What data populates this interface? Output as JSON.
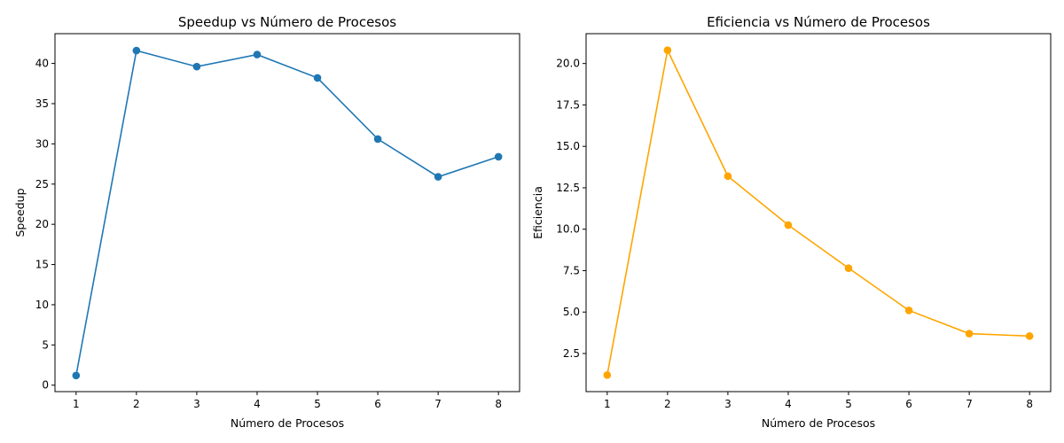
{
  "chart_data": [
    {
      "type": "line",
      "title": "Speedup vs Número de Procesos",
      "xlabel": "Número de Procesos",
      "ylabel": "Speedup",
      "x": [
        1,
        2,
        3,
        4,
        5,
        6,
        7,
        8
      ],
      "xlim": [
        0.65,
        8.35
      ],
      "ylim": [
        -0.8,
        43.7
      ],
      "xticks": [
        1,
        2,
        3,
        4,
        5,
        6,
        7,
        8
      ],
      "yticks": [
        0,
        5,
        10,
        15,
        20,
        25,
        30,
        35,
        40
      ],
      "yticklabels": [
        "0",
        "5",
        "10",
        "15",
        "20",
        "25",
        "30",
        "35",
        "40"
      ],
      "marker": "circle",
      "grid": false,
      "series": [
        {
          "color": "#1f77b4",
          "values": [
            1.2,
            41.6,
            39.6,
            41.1,
            38.2,
            30.6,
            25.9,
            28.4
          ]
        }
      ]
    },
    {
      "type": "line",
      "title": "Eficiencia vs Número de Procesos",
      "xlabel": "Número de Procesos",
      "ylabel": "Eficiencia",
      "x": [
        1,
        2,
        3,
        4,
        5,
        6,
        7,
        8
      ],
      "xlim": [
        0.65,
        8.35
      ],
      "ylim": [
        0.2,
        21.8
      ],
      "xticks": [
        1,
        2,
        3,
        4,
        5,
        6,
        7,
        8
      ],
      "yticks": [
        2.5,
        5.0,
        7.5,
        10.0,
        12.5,
        15.0,
        17.5,
        20.0
      ],
      "yticklabels": [
        "2.5",
        "5.0",
        "7.5",
        "10.0",
        "12.5",
        "15.0",
        "17.5",
        "20.0"
      ],
      "marker": "circle",
      "grid": false,
      "series": [
        {
          "color": "#ffa500",
          "values": [
            1.2,
            20.8,
            13.2,
            10.25,
            7.65,
            5.1,
            3.7,
            3.55
          ]
        }
      ]
    }
  ]
}
